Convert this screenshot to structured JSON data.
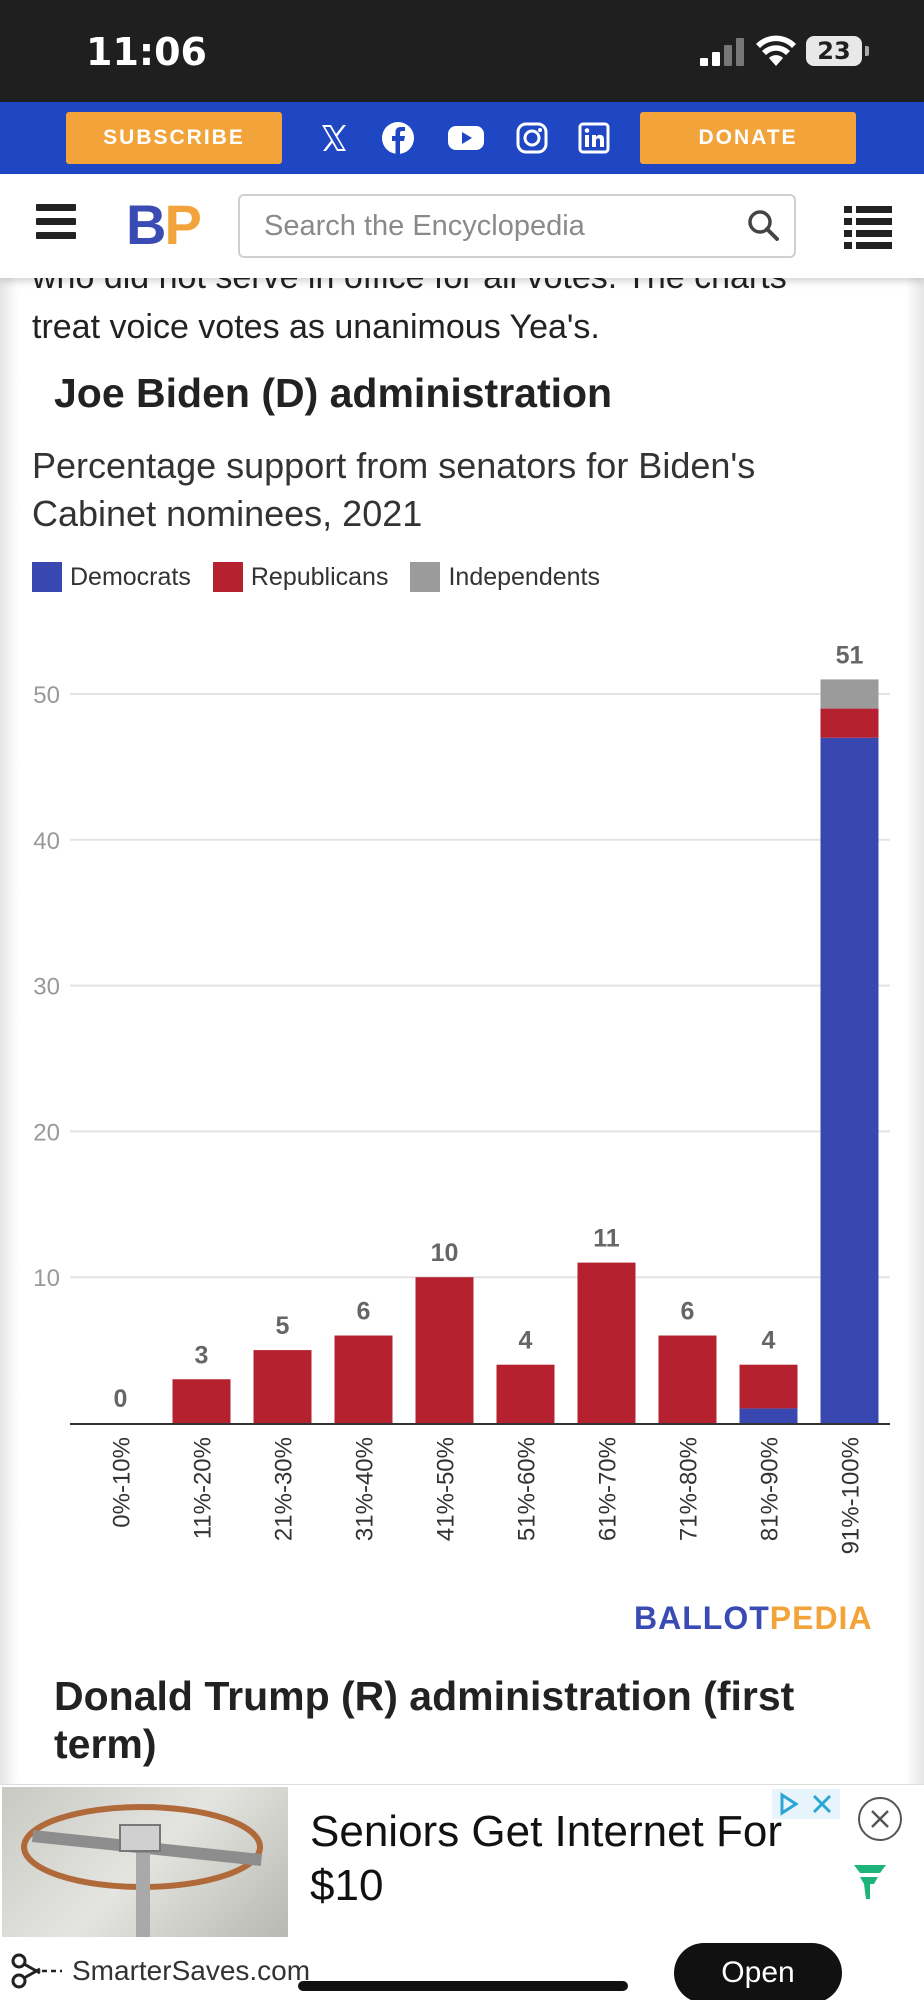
{
  "status_bar": {
    "time": "11:06",
    "battery": "23"
  },
  "social_bar": {
    "subscribe_label": "SUBSCRIBE",
    "donate_label": "DONATE"
  },
  "header": {
    "logo_b": "B",
    "logo_p": "P",
    "search_placeholder": "Search the Encyclopedia"
  },
  "article": {
    "intro_line1": "who did not serve in office for all votes. The charts",
    "intro_line2": "treat voice votes as unanimous Yea's.",
    "section_title": "Joe Biden (D) administration",
    "chart_title": "Percentage support from senators for Biden's Cabinet nominees, 2021",
    "next_section_title": "Donald Trump (R) administration (first term)",
    "brand_ballot": "BALLOT",
    "brand_pedia": "PEDIA"
  },
  "colors": {
    "democrats": "#3848b0",
    "republicans": "#b5212e",
    "independents": "#9b9b9b",
    "social_bar": "#1f47c4",
    "orange": "#f2a33a"
  },
  "chart_data": {
    "type": "bar",
    "stacked": true,
    "title": "Percentage support from senators for Biden's Cabinet nominees, 2021",
    "categories": [
      "0%-10%",
      "11%-20%",
      "21%-30%",
      "31%-40%",
      "41%-50%",
      "51%-60%",
      "61%-70%",
      "71%-80%",
      "81%-90%",
      "91%-100%"
    ],
    "series": [
      {
        "name": "Democrats",
        "values": [
          0,
          0,
          0,
          0,
          0,
          0,
          0,
          0,
          1,
          47
        ]
      },
      {
        "name": "Republicans",
        "values": [
          0,
          3,
          5,
          6,
          10,
          4,
          11,
          6,
          3,
          2
        ]
      },
      {
        "name": "Independents",
        "values": [
          0,
          0,
          0,
          0,
          0,
          0,
          0,
          0,
          0,
          2
        ]
      }
    ],
    "totals": [
      "0",
      "3",
      "5",
      "6",
      "10",
      "4",
      "11",
      "6",
      "4",
      "51"
    ],
    "yticks": [
      "10",
      "20",
      "30",
      "40",
      "50"
    ],
    "ylim": [
      0,
      50
    ],
    "legend_position": "top-left",
    "grid": true
  },
  "ad": {
    "headline": "Seniors Get Internet For $10",
    "source": "SmarterSaves.com",
    "cta": "Open"
  }
}
